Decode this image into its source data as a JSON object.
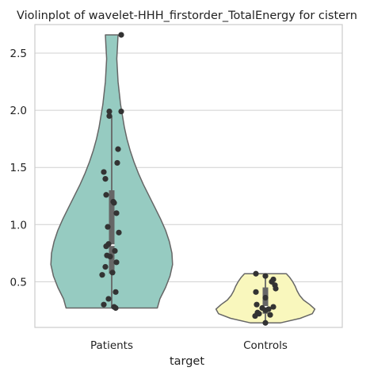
{
  "chart_data": {
    "type": "violin",
    "title": "Violinplot of wavelet-HHH_firstorder_TotalEnergy for cistern",
    "xlabel": "target",
    "ylabel": "",
    "categories": [
      "Patients",
      "Controls"
    ],
    "ylim": [
      0.1,
      2.75
    ],
    "yticks": [
      0.5,
      1.0,
      1.5,
      2.0,
      2.5
    ],
    "ytick_labels": [
      "0.5",
      "1.0",
      "1.5",
      "2.0",
      "2.5"
    ],
    "grid": "horizontal",
    "colors": {
      "Patients": "#96cbc1",
      "Controls": "#f9f7bd",
      "edge": "#666666",
      "point": "#333333",
      "grid": "#d0d0d0",
      "spine": "#cccccc",
      "box": "#666666"
    },
    "violins": [
      {
        "name": "Patients",
        "ymin": 0.27,
        "ymax": 2.66,
        "median": 0.82,
        "q1": 0.57,
        "q3": 1.3,
        "whisker_low": 0.27,
        "whisker_high": 1.95,
        "profile": [
          [
            0.27,
            0.72
          ],
          [
            0.35,
            0.76
          ],
          [
            0.45,
            0.85
          ],
          [
            0.55,
            0.92
          ],
          [
            0.65,
            0.96
          ],
          [
            0.75,
            0.95
          ],
          [
            0.85,
            0.91
          ],
          [
            0.95,
            0.85
          ],
          [
            1.05,
            0.77
          ],
          [
            1.15,
            0.68
          ],
          [
            1.25,
            0.59
          ],
          [
            1.35,
            0.5
          ],
          [
            1.45,
            0.42
          ],
          [
            1.55,
            0.35
          ],
          [
            1.65,
            0.29
          ],
          [
            1.75,
            0.24
          ],
          [
            1.85,
            0.2
          ],
          [
            1.95,
            0.17
          ],
          [
            2.05,
            0.14
          ],
          [
            2.15,
            0.12
          ],
          [
            2.25,
            0.1
          ],
          [
            2.35,
            0.09
          ],
          [
            2.45,
            0.08
          ],
          [
            2.55,
            0.09
          ],
          [
            2.66,
            0.1
          ]
        ],
        "points": [
          2.66,
          1.99,
          1.99,
          1.95,
          1.66,
          1.54,
          1.46,
          1.4,
          1.26,
          1.2,
          1.19,
          1.1,
          0.98,
          0.93,
          0.83,
          0.81,
          0.77,
          0.73,
          0.72,
          0.67,
          0.63,
          0.58,
          0.56,
          0.41,
          0.35,
          0.3,
          0.28,
          0.27
        ],
        "jitter": [
          0.12,
          -0.03,
          0.12,
          -0.03,
          0.08,
          0.07,
          -0.1,
          -0.08,
          -0.07,
          0.02,
          0.03,
          0.06,
          -0.05,
          0.09,
          -0.04,
          -0.07,
          0.04,
          -0.06,
          -0.02,
          0.06,
          -0.08,
          0.01,
          -0.12,
          0.05,
          -0.04,
          -0.1,
          0.03,
          0.05
        ]
      },
      {
        "name": "Controls",
        "ymin": 0.14,
        "ymax": 0.57,
        "median": 0.28,
        "q1": 0.22,
        "q3": 0.45,
        "whisker_low": 0.14,
        "whisker_high": 0.57,
        "profile": [
          [
            0.14,
            0.24
          ],
          [
            0.18,
            0.55
          ],
          [
            0.22,
            0.74
          ],
          [
            0.26,
            0.78
          ],
          [
            0.3,
            0.7
          ],
          [
            0.34,
            0.6
          ],
          [
            0.38,
            0.54
          ],
          [
            0.42,
            0.5
          ],
          [
            0.46,
            0.47
          ],
          [
            0.5,
            0.43
          ],
          [
            0.54,
            0.38
          ],
          [
            0.57,
            0.33
          ]
        ],
        "points": [
          0.57,
          0.55,
          0.52,
          0.5,
          0.47,
          0.44,
          0.41,
          0.36,
          0.3,
          0.28,
          0.27,
          0.26,
          0.25,
          0.23,
          0.22,
          0.21,
          0.2,
          0.14
        ],
        "jitter": [
          -0.12,
          0.0,
          0.1,
          0.08,
          0.12,
          0.13,
          -0.12,
          0.0,
          -0.11,
          0.1,
          -0.04,
          0.04,
          0.0,
          -0.1,
          -0.08,
          0.06,
          -0.13,
          0.0
        ]
      }
    ]
  }
}
